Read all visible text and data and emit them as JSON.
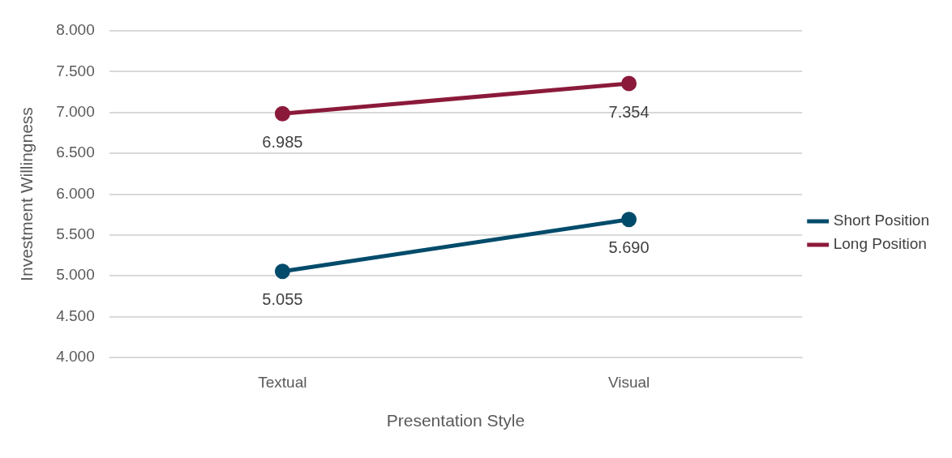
{
  "chart_data": {
    "type": "line",
    "xlabel": "Presentation Style",
    "ylabel": "Investment Willingness",
    "categories": [
      "Textual",
      "Visual"
    ],
    "series": [
      {
        "name": "Short Position",
        "color": "#004b6b",
        "values": [
          5.055,
          5.69
        ],
        "value_labels": [
          "5.055",
          "5.690"
        ]
      },
      {
        "name": "Long Position",
        "color": "#8b1a3a",
        "values": [
          6.985,
          7.354
        ],
        "value_labels": [
          "6.985",
          "7.354"
        ]
      }
    ],
    "ylim": [
      4,
      8
    ],
    "yticks": [
      {
        "value": 4,
        "label": "4.000"
      },
      {
        "value": 4.5,
        "label": "4.500"
      },
      {
        "value": 5,
        "label": "5.000"
      },
      {
        "value": 5.5,
        "label": "5.500"
      },
      {
        "value": 6,
        "label": "6.000"
      },
      {
        "value": 6.5,
        "label": "6.500"
      },
      {
        "value": 7,
        "label": "7.000"
      },
      {
        "value": 7.5,
        "label": "7.500"
      },
      {
        "value": 8,
        "label": "8.000"
      }
    ],
    "grid": "y",
    "legend": "right",
    "marker": "circle",
    "line_style": "solid"
  }
}
